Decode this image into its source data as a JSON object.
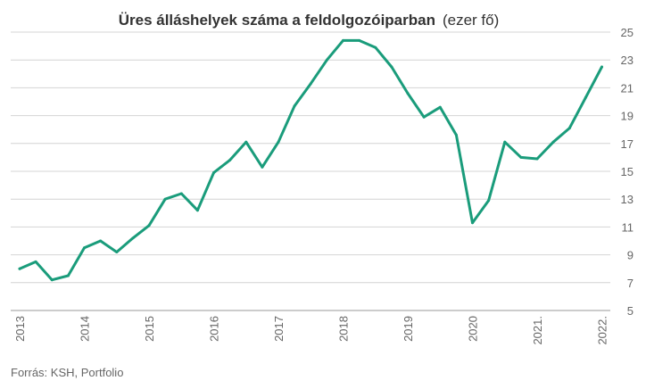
{
  "chart_data": {
    "type": "line",
    "title": "Üres álláshelyek száma a feldolgozóiparban",
    "unit": "(ezer fő)",
    "source": "Forrás: KSH, Portfolio",
    "xlabel": "",
    "ylabel": "",
    "y_axis_side": "right",
    "ylim": [
      5,
      25
    ],
    "y_ticks": [
      "5",
      "7",
      "9",
      "11",
      "13",
      "15",
      "17",
      "19",
      "21",
      "23",
      "25"
    ],
    "x_tick_labels": [
      "2013",
      "2014",
      "2015",
      "2016",
      "2017",
      "2018",
      "2019",
      "2020",
      "2021.",
      "2022."
    ],
    "grid": true,
    "line_color": "#1a9c7b",
    "series": [
      {
        "x": [
          "2013 Q1",
          "2013 Q2",
          "2013 Q3",
          "2013 Q4",
          "2014 Q1",
          "2014 Q2",
          "2014 Q3",
          "2014 Q4",
          "2015 Q1",
          "2015 Q2",
          "2015 Q3",
          "2015 Q4",
          "2016 Q1",
          "2016 Q2",
          "2016 Q3",
          "2016 Q4",
          "2017 Q1",
          "2017 Q2",
          "2017 Q3",
          "2017 Q4",
          "2018 Q1",
          "2018 Q2",
          "2018 Q3",
          "2018 Q4",
          "2019 Q1",
          "2019 Q2",
          "2019 Q3",
          "2019 Q4",
          "2020 Q1",
          "2020 Q2",
          "2020 Q3",
          "2020 Q4",
          "2021 Q1",
          "2021 Q2",
          "2021 Q3",
          "2021 Q4",
          "2022 Q1"
        ],
        "values": [
          8.0,
          8.5,
          7.2,
          7.5,
          9.5,
          10.0,
          9.2,
          10.2,
          11.1,
          13.0,
          13.4,
          12.2,
          14.9,
          15.8,
          17.1,
          15.3,
          17.1,
          19.7,
          21.3,
          23.0,
          24.4,
          24.4,
          23.9,
          22.5,
          20.6,
          18.9,
          19.6,
          17.6,
          11.3,
          12.9,
          17.1,
          16.0,
          15.9,
          17.1,
          18.1,
          20.3,
          22.5
        ]
      }
    ]
  }
}
